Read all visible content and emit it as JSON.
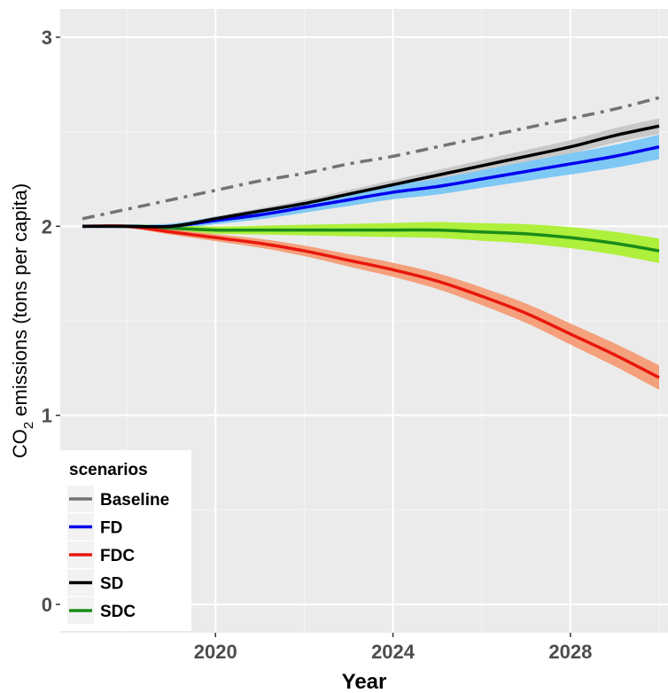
{
  "chart_data": {
    "type": "line",
    "title": "",
    "xlabel": "Year",
    "ylabel_main": "CO",
    "ylabel_sub": "2",
    "ylabel_rest": " emissions (tons per capita)",
    "xlim": [
      2016.5,
      2030.2
    ],
    "ylim": [
      -0.15,
      3.15
    ],
    "x_ticks": [
      2020,
      2024,
      2028
    ],
    "x_tick_labels": [
      "2020",
      "2024",
      "2028"
    ],
    "x_minor_ticks": [
      2018,
      2022,
      2026,
      2030
    ],
    "y_ticks": [
      0,
      1,
      2,
      3
    ],
    "y_tick_labels": [
      "0",
      "1",
      "2",
      "3"
    ],
    "y_minor_ticks": [
      0.5,
      1.5,
      2.5
    ],
    "grid": true,
    "legend": {
      "title": "scenarios",
      "position": "bottom-left"
    },
    "series": [
      {
        "name": "Baseline",
        "color": "#737373",
        "dash": "dashdot",
        "x": [
          2017,
          2018,
          2019,
          2020,
          2021,
          2022,
          2023,
          2024,
          2025,
          2026,
          2027,
          2028,
          2029,
          2030
        ],
        "y": [
          2.04,
          2.09,
          2.14,
          2.19,
          2.24,
          2.28,
          2.33,
          2.37,
          2.42,
          2.47,
          2.52,
          2.57,
          2.62,
          2.68
        ],
        "band": null
      },
      {
        "name": "FD",
        "color": "#0000ee",
        "band_color": "#7ec8f5",
        "x": [
          2017,
          2018,
          2019,
          2020,
          2021,
          2022,
          2023,
          2024,
          2025,
          2026,
          2027,
          2028,
          2029,
          2030
        ],
        "y": [
          2.0,
          2.0,
          2.0,
          2.03,
          2.06,
          2.1,
          2.14,
          2.18,
          2.21,
          2.25,
          2.29,
          2.33,
          2.37,
          2.42
        ],
        "band_width": 0.05
      },
      {
        "name": "FDC",
        "color": "#e8170c",
        "band_color": "#f5a07c",
        "x": [
          2017,
          2018,
          2019,
          2020,
          2021,
          2022,
          2023,
          2024,
          2025,
          2026,
          2027,
          2028,
          2029,
          2030
        ],
        "y": [
          2.0,
          2.0,
          1.97,
          1.94,
          1.91,
          1.87,
          1.82,
          1.77,
          1.71,
          1.63,
          1.54,
          1.43,
          1.32,
          1.2
        ],
        "band_width": 0.05
      },
      {
        "name": "SD",
        "color": "#000000",
        "band_color": "#c8c8c8",
        "x": [
          2017,
          2018,
          2019,
          2020,
          2021,
          2022,
          2023,
          2024,
          2025,
          2026,
          2027,
          2028,
          2029,
          2030
        ],
        "y": [
          2.0,
          2.0,
          2.0,
          2.04,
          2.08,
          2.12,
          2.17,
          2.22,
          2.27,
          2.32,
          2.37,
          2.42,
          2.48,
          2.53
        ],
        "band_width": 0.03
      },
      {
        "name": "SDC",
        "color": "#1a8c1a",
        "band_color": "#aef03c",
        "x": [
          2017,
          2018,
          2019,
          2020,
          2021,
          2022,
          2023,
          2024,
          2025,
          2026,
          2027,
          2028,
          2029,
          2030
        ],
        "y": [
          2.0,
          2.0,
          1.99,
          1.98,
          1.98,
          1.98,
          1.98,
          1.98,
          1.98,
          1.97,
          1.96,
          1.94,
          1.91,
          1.87
        ],
        "band_width": 0.05
      }
    ]
  }
}
